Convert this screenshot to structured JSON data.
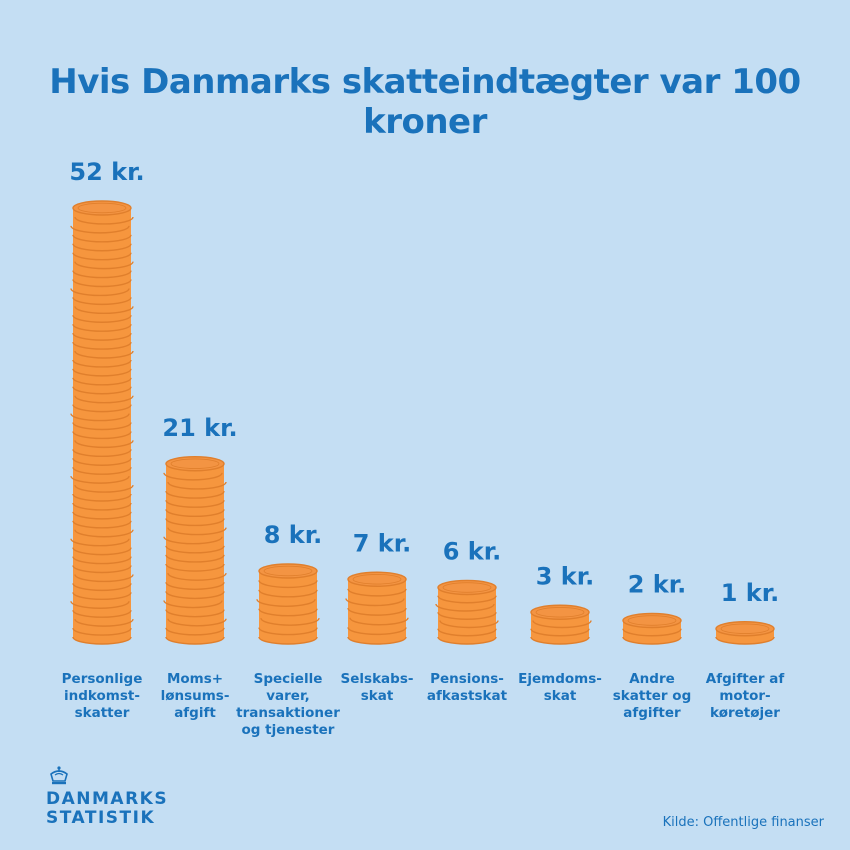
{
  "chart_data": {
    "type": "bar",
    "title": "Hvis Danmarks skatteindtægter var 100 kroner",
    "categories": [
      "Personlige\nindkomst-\nskatter",
      "Moms+\nlønsums-\nafgift",
      "Specielle\nvarer,\ntransaktioner\nog tjenester",
      "Selskabs-\nskat",
      "Pensions-\nafkastskat",
      "Ejemdoms-\nskat",
      "Andre\nskatter og\nafgifter",
      "Afgifter af\nmotor-\nkøretøjer"
    ],
    "values": [
      52,
      21,
      8,
      7,
      6,
      3,
      2,
      1
    ],
    "value_labels": [
      "52 kr.",
      "21 kr.",
      "8 kr.",
      "7 kr.",
      "6 kr.",
      "3 kr.",
      "2 kr.",
      "1 kr."
    ],
    "colors": {
      "coin": "#f6963e",
      "coin_edge": "#e07f2c",
      "coin_top": "#f39443",
      "text": "#1a72bb",
      "background": "#c4def3"
    }
  },
  "logo": {
    "name": "DANMARKS\nSTATISTIK",
    "icon": "crown-icon"
  },
  "source": "Kilde: Offentlige finanser"
}
